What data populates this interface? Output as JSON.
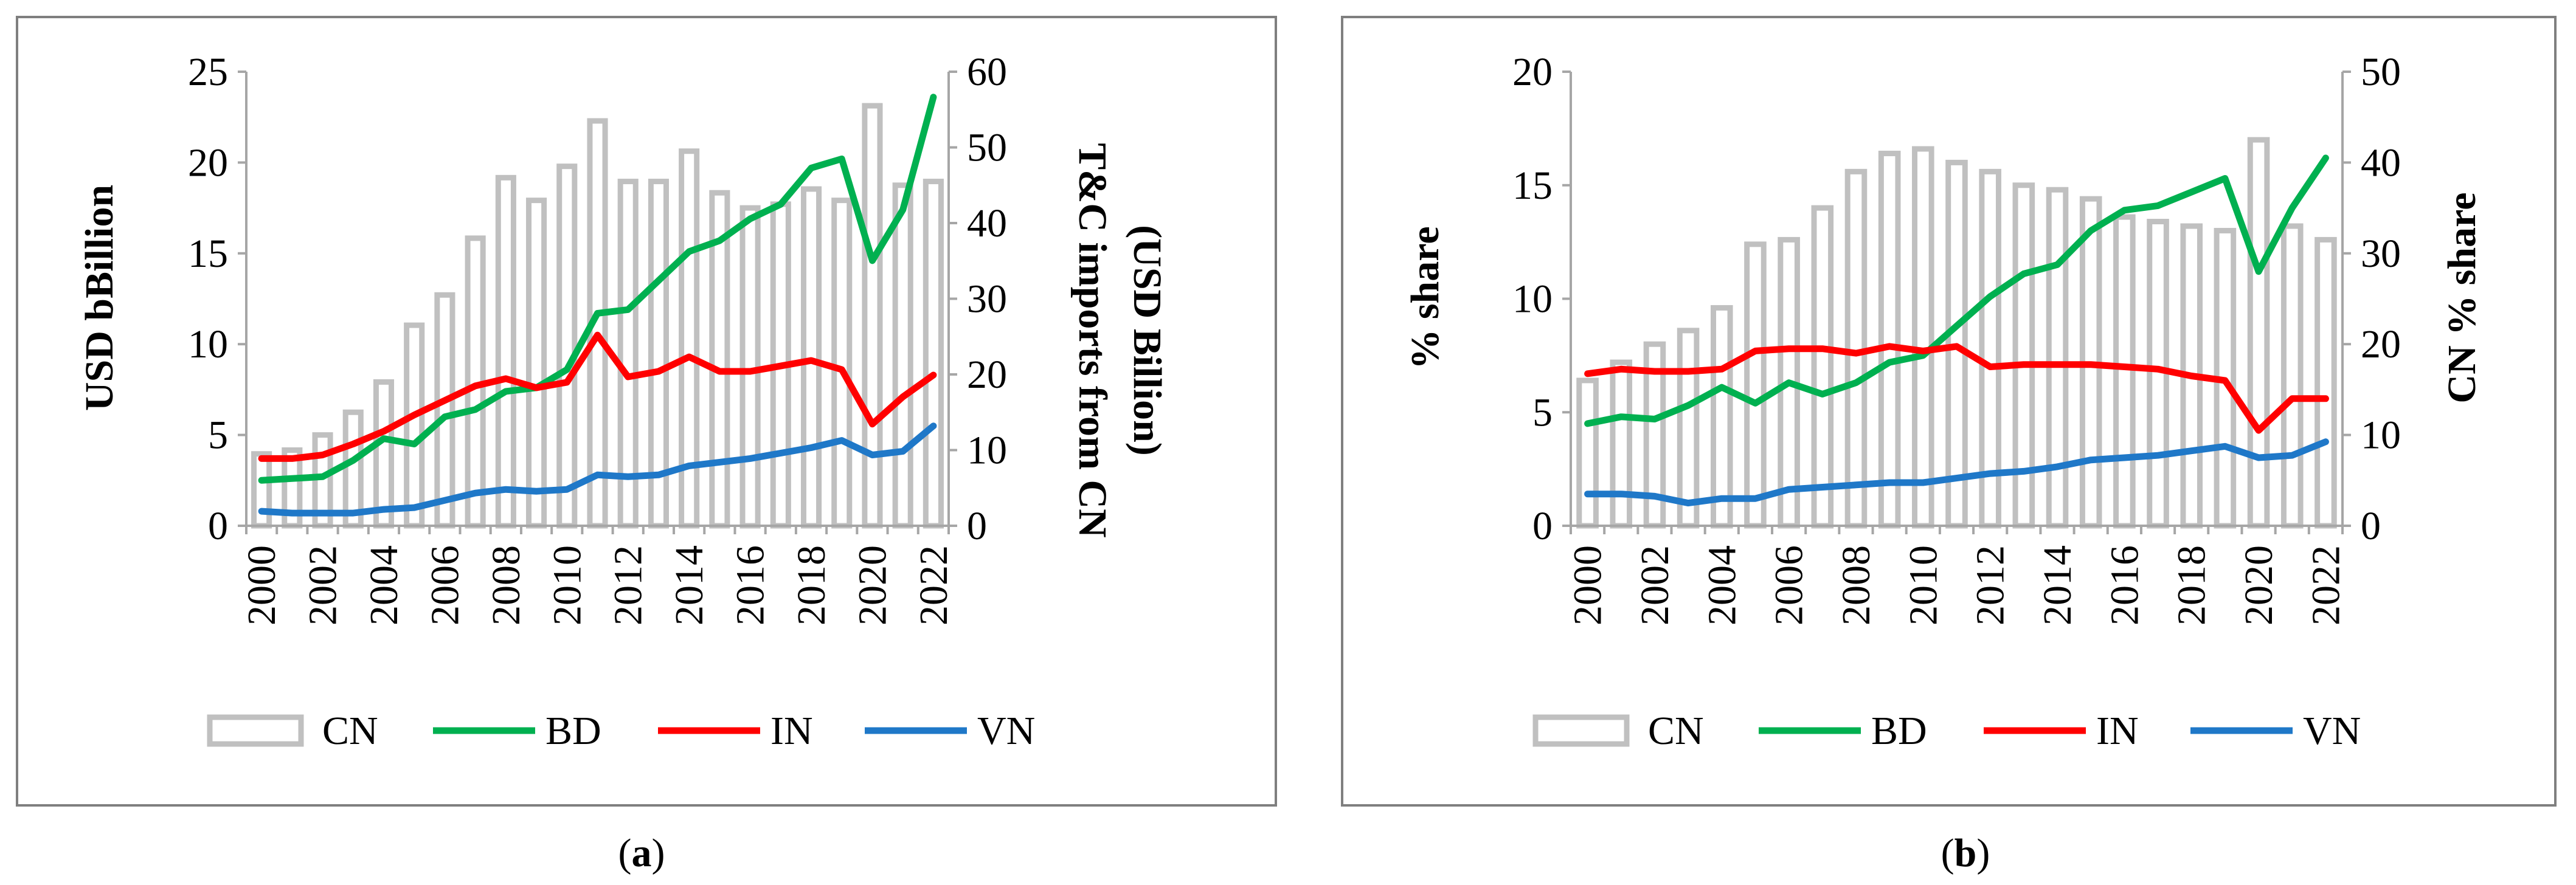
{
  "chart_data": [
    {
      "id": "a",
      "type": "bar+line",
      "caption_prefix": "(",
      "caption_letter": "a",
      "caption_suffix": ")",
      "years": [
        2000,
        2001,
        2002,
        2003,
        2004,
        2005,
        2006,
        2007,
        2008,
        2009,
        2010,
        2011,
        2012,
        2013,
        2014,
        2015,
        2016,
        2017,
        2018,
        2019,
        2020,
        2021,
        2022
      ],
      "xticks": [
        "2000",
        "2002",
        "2004",
        "2006",
        "2008",
        "2010",
        "2012",
        "2014",
        "2016",
        "2018",
        "2020",
        "2022"
      ],
      "ylabel": "USD bBillion",
      "ylim": [
        0,
        25
      ],
      "yticks": [
        "0",
        "5",
        "10",
        "15",
        "20",
        "25"
      ],
      "y2label_line1": "T&C imports from CN",
      "y2label_line2": "(USD Billion)",
      "y2lim": [
        0,
        60
      ],
      "y2ticks": [
        "0",
        "10",
        "20",
        "30",
        "40",
        "50",
        "60"
      ],
      "bar_series": {
        "name": "CN",
        "axis": "right",
        "values": [
          9.5,
          10,
          12,
          15,
          19,
          26.5,
          30.5,
          38,
          46,
          43,
          47.5,
          53.5,
          45.5,
          45.5,
          49.5,
          44,
          42,
          42.5,
          44.5,
          43,
          55.5,
          45,
          45.5
        ]
      },
      "line_series": [
        {
          "name": "BD",
          "values": [
            2.5,
            2.6,
            2.7,
            3.6,
            4.8,
            4.5,
            6.0,
            6.4,
            7.4,
            7.6,
            8.6,
            11.7,
            11.9,
            13.5,
            15.1,
            15.7,
            16.9,
            17.7,
            19.7,
            20.2,
            14.6,
            17.4,
            23.6
          ]
        },
        {
          "name": "IN",
          "values": [
            3.7,
            3.7,
            3.9,
            4.5,
            5.2,
            6.1,
            6.9,
            7.7,
            8.1,
            7.6,
            7.9,
            10.5,
            8.2,
            8.5,
            9.3,
            8.5,
            8.5,
            8.8,
            9.1,
            8.6,
            5.6,
            7.1,
            8.3
          ]
        },
        {
          "name": "VN",
          "values": [
            0.8,
            0.7,
            0.7,
            0.7,
            0.9,
            1.0,
            1.4,
            1.8,
            2.0,
            1.9,
            2.0,
            2.8,
            2.7,
            2.8,
            3.3,
            3.5,
            3.7,
            4.0,
            4.3,
            4.7,
            3.9,
            4.1,
            5.5
          ]
        }
      ],
      "legend": [
        "CN",
        "BD",
        "IN",
        "VN"
      ]
    },
    {
      "id": "b",
      "type": "bar+line",
      "caption_prefix": "(",
      "caption_letter": "b",
      "caption_suffix": ")",
      "years": [
        2000,
        2001,
        2002,
        2003,
        2004,
        2005,
        2006,
        2007,
        2008,
        2009,
        2010,
        2011,
        2012,
        2013,
        2014,
        2015,
        2016,
        2017,
        2018,
        2019,
        2020,
        2021,
        2022
      ],
      "xticks": [
        "2000",
        "2002",
        "2004",
        "2006",
        "2008",
        "2010",
        "2012",
        "2014",
        "2016",
        "2018",
        "2020",
        "2022"
      ],
      "ylabel": "% share",
      "ylim": [
        0,
        20
      ],
      "yticks": [
        "0",
        "5",
        "10",
        "15",
        "20"
      ],
      "y2label_line1": "CN % share",
      "y2label_line2": "",
      "y2lim": [
        0,
        50
      ],
      "y2ticks": [
        "0",
        "10",
        "20",
        "30",
        "40",
        "50"
      ],
      "bar_series": {
        "name": "CN",
        "axis": "right",
        "values": [
          16,
          18,
          20,
          21.5,
          24,
          31,
          31.5,
          35,
          39,
          41,
          41.5,
          40,
          39,
          37.5,
          37,
          36,
          34,
          33.5,
          33,
          32.5,
          42.5,
          33,
          31.5
        ]
      },
      "line_series": [
        {
          "name": "BD",
          "values": [
            4.5,
            4.8,
            4.7,
            5.3,
            6.1,
            5.4,
            6.3,
            5.8,
            6.3,
            7.2,
            7.5,
            8.8,
            10.1,
            11.1,
            11.5,
            13.0,
            13.9,
            14.1,
            14.7,
            15.3,
            11.2,
            14.0,
            16.2
          ]
        },
        {
          "name": "IN",
          "values": [
            6.7,
            6.9,
            6.8,
            6.8,
            6.9,
            7.7,
            7.8,
            7.8,
            7.6,
            7.9,
            7.7,
            7.9,
            7.0,
            7.1,
            7.1,
            7.1,
            7.0,
            6.9,
            6.6,
            6.4,
            4.2,
            5.6,
            5.6
          ]
        },
        {
          "name": "VN",
          "values": [
            1.4,
            1.4,
            1.3,
            1.0,
            1.2,
            1.2,
            1.6,
            1.7,
            1.8,
            1.9,
            1.9,
            2.1,
            2.3,
            2.4,
            2.6,
            2.9,
            3.0,
            3.1,
            3.3,
            3.5,
            3.0,
            3.1,
            3.7
          ]
        }
      ],
      "legend": [
        "CN",
        "BD",
        "IN",
        "VN"
      ]
    }
  ],
  "colors": {
    "CN": "#c0c0c0",
    "BD": "#00b050",
    "IN": "#ff0000",
    "VN": "#1f78c8",
    "axis": "#a6a6a6",
    "border": "#7f7f7f",
    "text": "#000000"
  }
}
